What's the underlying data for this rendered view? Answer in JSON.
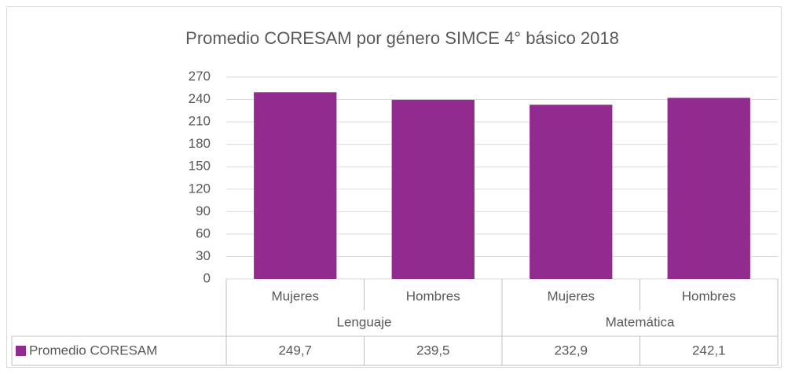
{
  "chart_data": {
    "type": "bar",
    "title": "Promedio CORESAM por género SIMCE 4° básico 2018",
    "categories": [
      "Mujeres",
      "Hombres",
      "Mujeres",
      "Hombres"
    ],
    "groups": [
      "Lenguaje",
      "Matemática"
    ],
    "series": [
      {
        "name": "Promedio CORESAM",
        "color": "#922b8f",
        "values": [
          249.7,
          239.5,
          232.9,
          242.1
        ],
        "value_labels": [
          "249,7",
          "239,5",
          "232,9",
          "242,1"
        ]
      }
    ],
    "ylim": [
      0,
      270
    ],
    "yticks": [
      0,
      30,
      60,
      90,
      120,
      150,
      180,
      210,
      240,
      270
    ],
    "grid": true
  }
}
